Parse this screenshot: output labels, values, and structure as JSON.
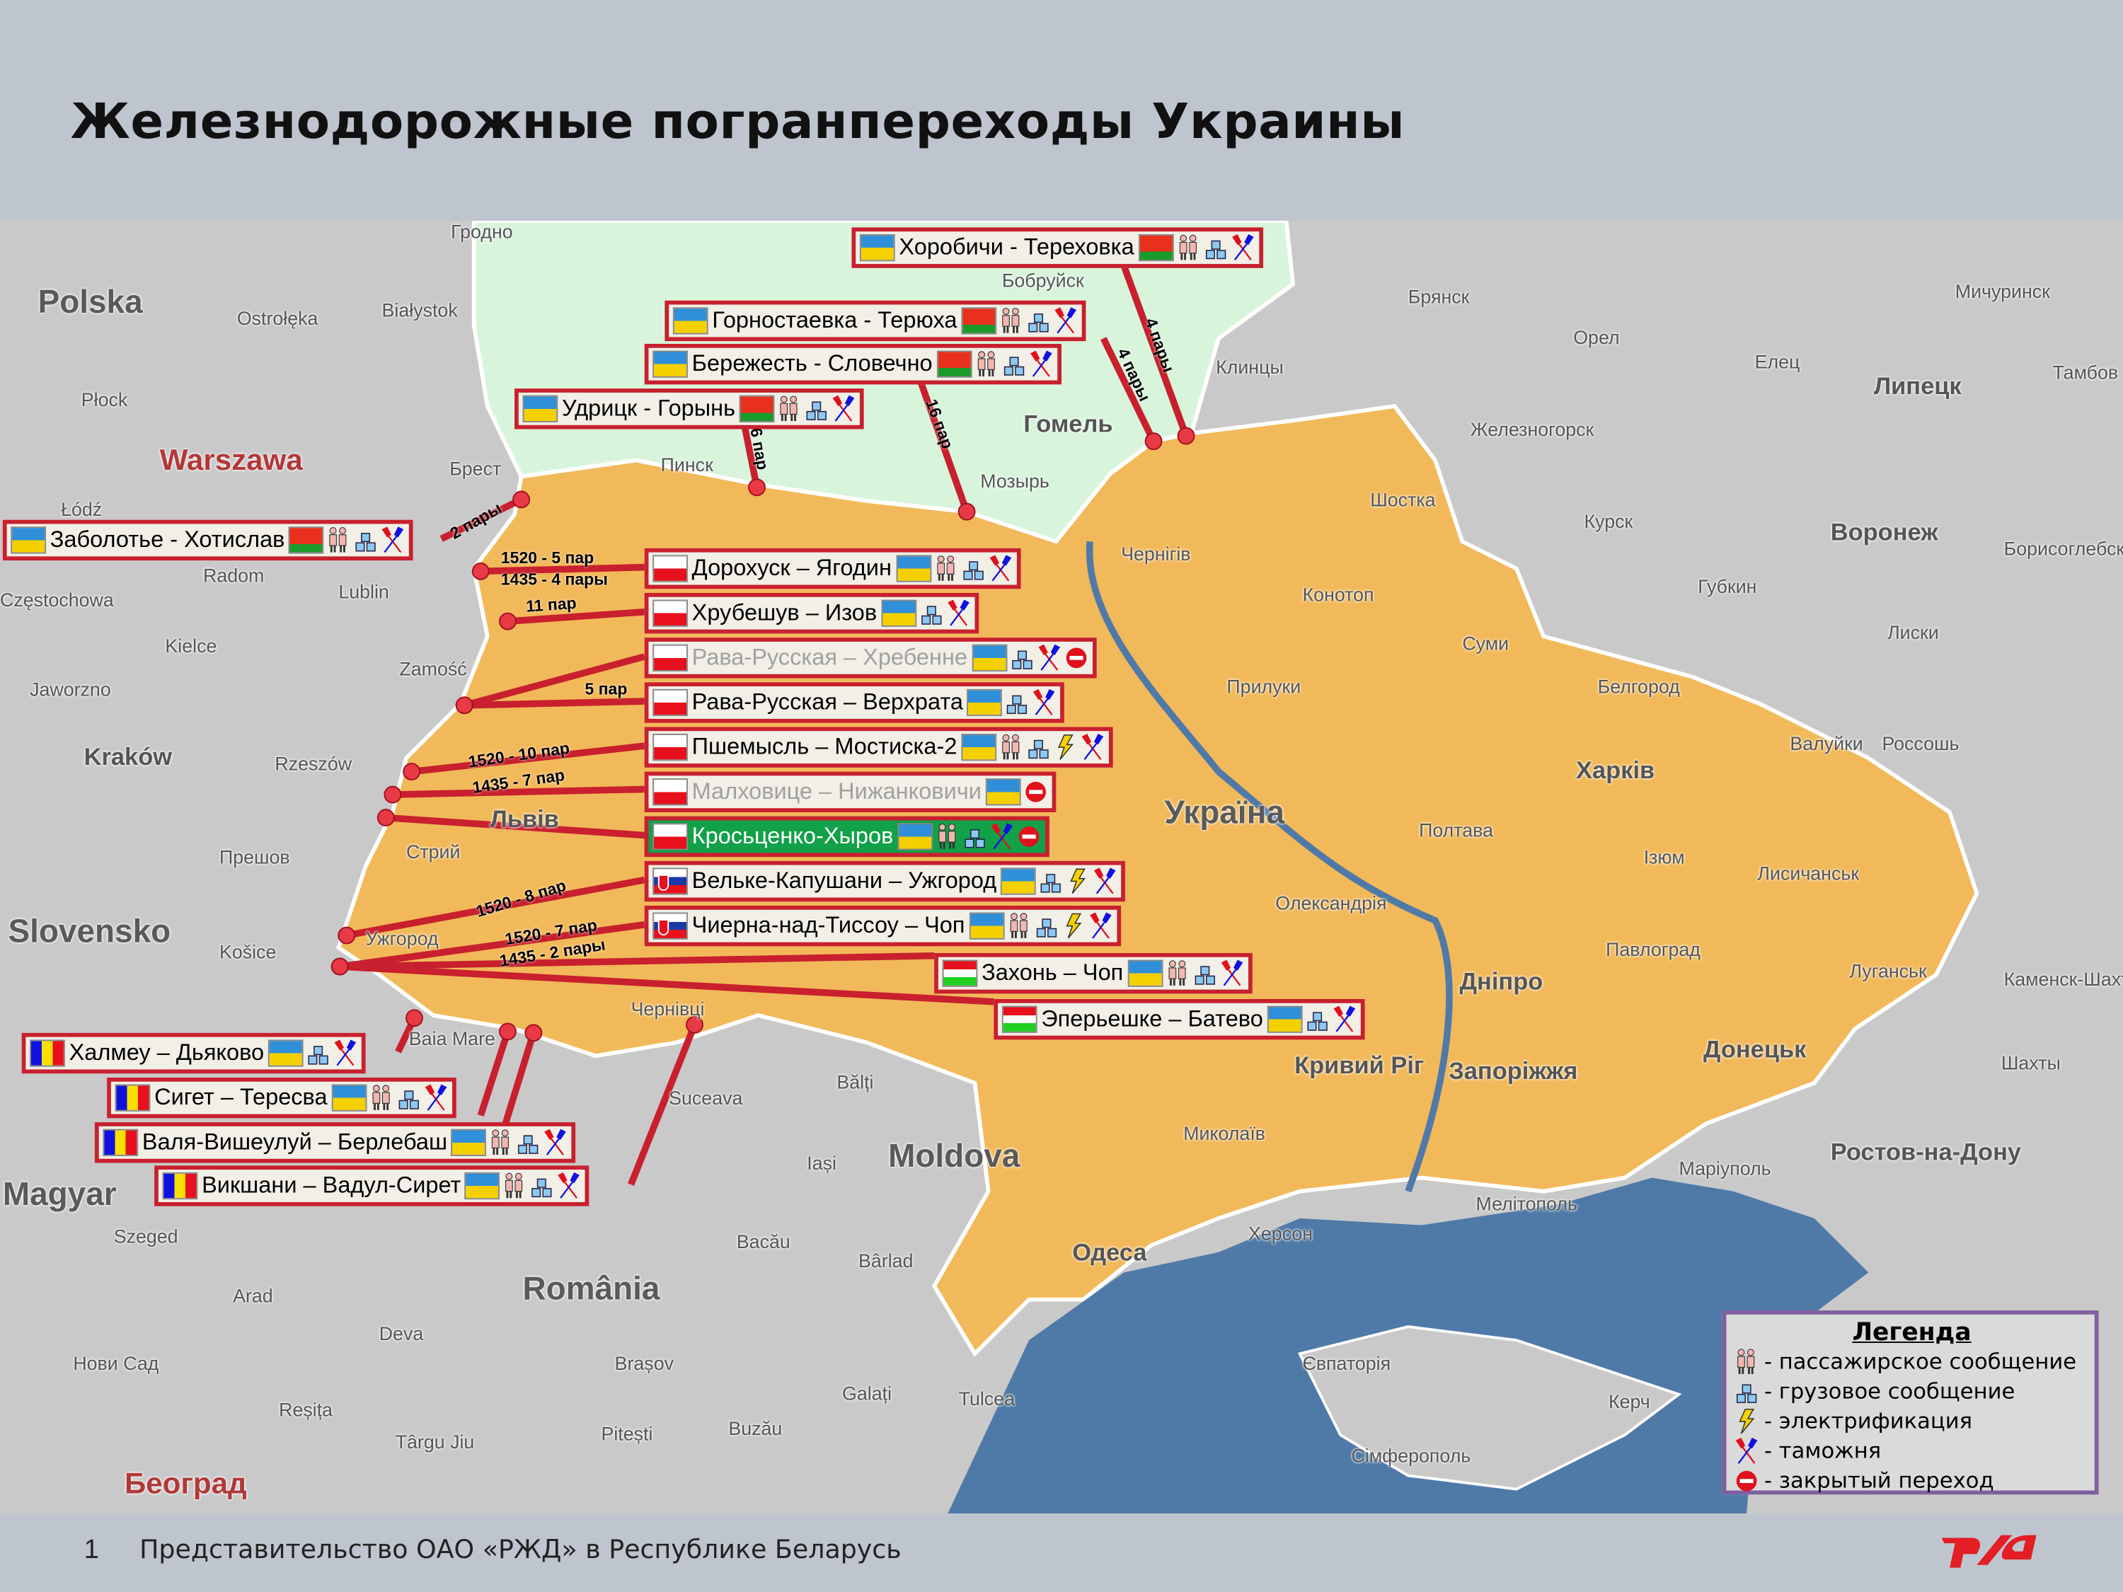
{
  "title": "Железнодорожные погранпереходы Украины",
  "colors": {
    "border_red": "#c8202e",
    "ukraine": "#f2b95a",
    "belarus": "#d8f5dc",
    "sea": "#4f7aa8",
    "neighbours": "#c9c9c9",
    "legend_border": "#7f5f9f",
    "open_green": "#12a048"
  },
  "crossings": [
    {
      "name": "Хоробичи - Тереховка",
      "flags": [
        "ua",
        "by"
      ],
      "icons": [
        "passenger",
        "freight",
        "customs"
      ],
      "pairs": [
        "4 пары"
      ]
    },
    {
      "name": "Горностаевка - Терюха",
      "flags": [
        "ua",
        "by"
      ],
      "icons": [
        "passenger",
        "freight",
        "customs"
      ],
      "pairs": [
        "4 пары"
      ]
    },
    {
      "name": "Бережесть - Словечно",
      "flags": [
        "ua",
        "by"
      ],
      "icons": [
        "passenger",
        "freight",
        "customs"
      ],
      "pairs": [
        "16 пар"
      ]
    },
    {
      "name": "Удрицк - Горынь",
      "flags": [
        "ua",
        "by"
      ],
      "icons": [
        "passenger",
        "freight",
        "customs"
      ],
      "pairs": [
        "6 пар"
      ]
    },
    {
      "name": "Заболотье - Хотислав",
      "flags": [
        "ua",
        "by"
      ],
      "icons": [
        "passenger",
        "freight",
        "customs"
      ],
      "pairs": [
        "2 пары"
      ]
    },
    {
      "name": "Дорохуск – Ягодин",
      "flags": [
        "pl",
        "ua"
      ],
      "icons": [
        "passenger",
        "freight",
        "customs"
      ],
      "pairs": [
        "1520 - 5 пар",
        "1435 - 4 пары"
      ]
    },
    {
      "name": "Хрубешув – Изов",
      "flags": [
        "pl",
        "ua"
      ],
      "icons": [
        "freight",
        "customs"
      ],
      "pairs": [
        "11 пар"
      ]
    },
    {
      "name": "Рава-Русская – Хребенне",
      "flags": [
        "pl",
        "ua"
      ],
      "icons": [
        "freight",
        "customs",
        "closed"
      ],
      "status": "closed",
      "pairs": []
    },
    {
      "name": "Рава-Русская – Верхрата",
      "flags": [
        "pl",
        "ua"
      ],
      "icons": [
        "freight",
        "customs"
      ],
      "pairs": [
        "5 пар"
      ]
    },
    {
      "name": "Пшемысль – Мостиска-2",
      "flags": [
        "pl",
        "ua"
      ],
      "icons": [
        "passenger",
        "freight",
        "electric",
        "customs"
      ],
      "pairs": [
        "1520 - 10 пар",
        "1435 - 7 пар"
      ]
    },
    {
      "name": "Малховице – Нижанковичи",
      "flags": [
        "pl",
        "ua"
      ],
      "icons": [
        "closed"
      ],
      "status": "closed",
      "pairs": []
    },
    {
      "name": "Кросьценко-Хыров",
      "flags": [
        "pl",
        "ua"
      ],
      "icons": [
        "passenger",
        "freight",
        "customs",
        "closed"
      ],
      "status": "highlight",
      "pairs": []
    },
    {
      "name": "Вельке-Капушани – Ужгород",
      "flags": [
        "sk",
        "ua"
      ],
      "icons": [
        "freight",
        "electric",
        "customs"
      ],
      "pairs": [
        "1520 - 8 пар"
      ]
    },
    {
      "name": "Чиерна-над-Тиссоу – Чоп",
      "flags": [
        "sk",
        "ua"
      ],
      "icons": [
        "passenger",
        "freight",
        "electric",
        "customs"
      ],
      "pairs": [
        "1520 - 7 пар",
        "1435 - 2 пары"
      ]
    },
    {
      "name": "Захонь – Чоп",
      "flags": [
        "hu",
        "ua"
      ],
      "icons": [
        "passenger",
        "freight",
        "customs"
      ],
      "pairs": []
    },
    {
      "name": "Эперьешке – Батево",
      "flags": [
        "hu",
        "ua"
      ],
      "icons": [
        "freight",
        "customs"
      ],
      "pairs": []
    },
    {
      "name": "Халмеу – Дьяково",
      "flags": [
        "ro",
        "ua"
      ],
      "icons": [
        "freight",
        "customs"
      ],
      "pairs": []
    },
    {
      "name": "Сигет – Тересва",
      "flags": [
        "ro",
        "ua"
      ],
      "icons": [
        "passenger",
        "freight",
        "customs"
      ],
      "pairs": []
    },
    {
      "name": "Валя-Вишеулуй – Берлебаш",
      "flags": [
        "ro",
        "ua"
      ],
      "icons": [
        "passenger",
        "freight",
        "customs"
      ],
      "pairs": []
    },
    {
      "name": "Викшани – Вадул-Сирет",
      "flags": [
        "ro",
        "ua"
      ],
      "icons": [
        "passenger",
        "freight",
        "customs"
      ],
      "pairs": []
    }
  ],
  "map_labels": [
    "Polska",
    "Warszawa",
    "Łódź",
    "Radom",
    "Lublin",
    "Kielce",
    "Częstochowa",
    "Kraków",
    "Rzeszów",
    "Zamość",
    "Jaworzno",
    "Płock",
    "Ostrołęka",
    "Białystok",
    "Гродно",
    "Бобруйск",
    "Брест",
    "Пинск",
    "Мозырь",
    "Гомель",
    "Клинцы",
    "Брянск",
    "Орел",
    "Елец",
    "Липецк",
    "Мичуринск",
    "Железногорск",
    "Курск",
    "Воронеж",
    "Губкин",
    "Белгород",
    "Шостка",
    "Чернігів",
    "Конотоп",
    "Суми",
    "Прилуки",
    "Україна",
    "Полтава",
    "Харків",
    "Олександрія",
    "Дніпро",
    "Кривий Ріг",
    "Запоріжжя",
    "Миколаїв",
    "Одеса",
    "Херсон",
    "Мелітополь",
    "Маріуполь",
    "Донецьк",
    "Луганськ",
    "Лисичанськ",
    "Ростов-на-Дону",
    "Шахты",
    "Стрий",
    "Прешов",
    "Slovensko",
    "Košice",
    "Ужгород",
    "Baia Mare",
    "Чернівці",
    "Suceava",
    "Bălți",
    "Iași",
    "Moldova",
    "Bacău",
    "Bârlad",
    "România",
    "Galați",
    "Tulcea",
    "Brașov",
    "Pitești",
    "Buzău",
    "Deva",
    "Arad",
    "Szeged",
    "Magyar",
    "Нови Сад",
    "Београд",
    "Reșița",
    "Târgu Jiu",
    "Євпаторія",
    "Сімферополь",
    "Керч",
    "Ізюм",
    "Павлоград",
    "Валуйки",
    "Россошь",
    "Лиски",
    "Борисоглебск",
    "Каменск-Шахтинский",
    "Тамбов",
    "Львів"
  ],
  "legend": {
    "title": "Легенда",
    "items": [
      {
        "icon": "passenger",
        "label": "- пассажирское сообщение"
      },
      {
        "icon": "freight",
        "label": "- грузовое сообщение"
      },
      {
        "icon": "electric",
        "label": "- электрификация"
      },
      {
        "icon": "customs",
        "label": "- таможня"
      },
      {
        "icon": "closed",
        "label": "- закрытый переход"
      }
    ]
  },
  "footer": {
    "page_number": "1",
    "text": "Представительство ОАО «РЖД» в Республике Беларусь"
  },
  "logo": {
    "text": "РЖД",
    "color": "#e31e24"
  }
}
